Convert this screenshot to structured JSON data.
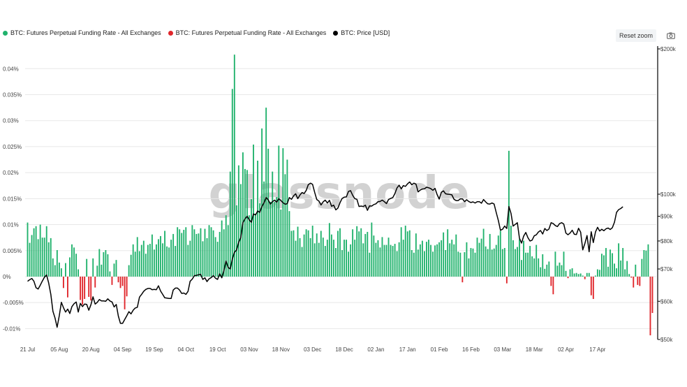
{
  "legend": {
    "pos_label": "BTC: Futures Perpetual Funding Rate - All Exchanges",
    "neg_label": "BTC: Futures Perpetual Funding Rate - All Exchanges",
    "price_label": "BTC: Price [USD]"
  },
  "controls": {
    "reset_label": "Reset zoom",
    "camera_icon": "camera-icon"
  },
  "watermark": "glassnode",
  "colors": {
    "positive": "#20b26c",
    "negative": "#e0262b",
    "price": "#000000",
    "axis": "#000000"
  },
  "chart_data": {
    "type": "bar",
    "left_axis": {
      "ticks": [
        "-0.01%",
        "-0.005%",
        "0%",
        "0.005%",
        "0.01%",
        "0.015%",
        "0.02%",
        "0.025%",
        "0.03%",
        "0.035%",
        "0.04%"
      ],
      "values": [
        -0.01,
        -0.005,
        0,
        0.005,
        0.01,
        0.015,
        0.02,
        0.025,
        0.03,
        0.035,
        0.04
      ],
      "ylim": [
        -0.0121,
        0.0434
      ]
    },
    "right_axis": {
      "scale": "log",
      "ticks": [
        "$50k",
        "$60k",
        "$70k",
        "$80k",
        "$90k",
        "$100k",
        "$200k"
      ],
      "values": [
        50000,
        60000,
        70000,
        80000,
        90000,
        100000,
        200000
      ]
    },
    "x_ticks": [
      "21 Jul",
      "05 Aug",
      "20 Aug",
      "04 Sep",
      "19 Sep",
      "04 Oct",
      "19 Oct",
      "03 Nov",
      "18 Nov",
      "03 Dec",
      "18 Dec",
      "02 Jan",
      "17 Jan",
      "01 Feb",
      "16 Feb",
      "03 Mar",
      "18 Mar",
      "02 Apr",
      "17 Apr"
    ],
    "x_range": [
      "2024-07-21",
      "2025-04-24"
    ],
    "funding_rate": [
      0.0104,
      0.0065,
      0.008,
      0.0093,
      0.0097,
      0.0072,
      0.01,
      0.0075,
      0.0075,
      0.0097,
      0.0066,
      0.0074,
      0.0035,
      0.0022,
      0.0051,
      0.0027,
      0.0016,
      -0.0022,
      0.0026,
      -0.004,
      0.0037,
      0.0062,
      0.0056,
      0.0044,
      0.0014,
      -0.0045,
      -0.0054,
      -0.0043,
      0.0034,
      -0.0039,
      -0.0046,
      0.0035,
      -0.0021,
      0.0021,
      0.0053,
      0.0023,
      0.0047,
      0.0051,
      0.0043,
      0.001,
      -0.0016,
      0.0025,
      0.0032,
      -0.0011,
      -0.0022,
      -0.0018,
      -0.0063,
      -0.0038,
      0.0022,
      0.0042,
      0.0062,
      0.0048,
      0.0076,
      0.0049,
      0.0061,
      0.0069,
      0.0044,
      0.0061,
      0.0063,
      0.0081,
      0.0052,
      0.0062,
      0.0072,
      0.0078,
      0.0064,
      0.0088,
      0.0058,
      0.0056,
      0.0071,
      0.0082,
      0.0059,
      0.0095,
      0.0091,
      0.0084,
      0.009,
      0.0095,
      0.0061,
      0.0069,
      0.0099,
      0.0091,
      0.0082,
      0.0083,
      0.0093,
      0.0068,
      0.0092,
      0.0074,
      0.0099,
      0.0095,
      0.0089,
      0.0076,
      0.0067,
      0.0086,
      0.0108,
      0.0091,
      0.0118,
      0.0099,
      0.0202,
      0.0361,
      0.0427,
      0.0137,
      0.0214,
      0.0178,
      0.0239,
      0.0207,
      0.0205,
      0.0118,
      0.0149,
      0.0254,
      0.0121,
      0.0223,
      0.0141,
      0.0285,
      0.0183,
      0.0325,
      0.0246,
      0.0144,
      0.0202,
      0.0144,
      0.0153,
      0.0252,
      0.0129,
      0.0247,
      0.0197,
      0.0225,
      0.0126,
      0.0088,
      0.0089,
      0.0069,
      0.0096,
      0.0074,
      0.0057,
      0.0081,
      0.0091,
      0.0089,
      0.0074,
      0.0098,
      0.0064,
      0.0083,
      0.0065,
      0.0088,
      0.0075,
      0.0059,
      0.0071,
      0.0103,
      0.0081,
      0.0071,
      0.0055,
      0.0088,
      0.0093,
      0.0051,
      0.0071,
      0.0071,
      0.0048,
      0.0062,
      0.0091,
      0.0071,
      0.0097,
      0.0087,
      0.0093,
      0.0064,
      0.0082,
      0.0086,
      0.0046,
      0.0104,
      0.0079,
      0.0065,
      0.007,
      0.0056,
      0.0076,
      0.0061,
      0.0061,
      0.0075,
      0.0061,
      0.0059,
      0.0063,
      0.0049,
      0.0066,
      0.0095,
      0.0071,
      0.0098,
      0.0087,
      0.0089,
      0.0051,
      0.0046,
      0.0083,
      0.0052,
      0.0062,
      0.0069,
      0.0049,
      0.0067,
      0.0071,
      0.0061,
      0.0048,
      0.006,
      0.0062,
      0.0066,
      0.007,
      0.0085,
      0.0051,
      0.0091,
      0.0064,
      0.0071,
      0.0062,
      0.0081,
      0.0048,
      0.0046,
      -0.0011,
      0.0047,
      0.0066,
      0.0035,
      0.0055,
      0.0054,
      0.0046,
      0.0075,
      0.0065,
      0.0073,
      0.0092,
      0.0058,
      0.0053,
      0.0082,
      0.0052,
      0.0054,
      0.0061,
      0.0079,
      0.0088,
      0.0053,
      0.0055,
      -0.0013,
      0.0242,
      0.0098,
      0.007,
      0.0053,
      0.0057,
      0.0072,
      0.0032,
      0.0069,
      0.0046,
      0.0046,
      0.0059,
      0.0039,
      0.0035,
      0.0061,
      0.0035,
      0.0018,
      0.0043,
      0.0015,
      0.0023,
      0.0029,
      -0.0018,
      -0.0034,
      0.0048,
      0.0021,
      0.0027,
      0.0022,
      0.0048,
      0.0011,
      -0.0003,
      0.0014,
      0.0016,
      0.0006,
      0.0007,
      0.0005,
      0.0006,
      0.0002,
      -0.0005,
      0.0007,
      0.0007,
      -0.0036,
      -0.0043,
      0.0002,
      0.0014,
      0.0013,
      0.0044,
      0.0041,
      0.0055,
      0.0019,
      0.0052,
      0.0045,
      0.0025,
      0.0016,
      0.0064,
      0.0031,
      0.0055,
      0.0014,
      0.003,
      0.0005,
      -0.0002,
      -0.0021,
      0.0023,
      -0.0016,
      -0.0018,
      0.0034,
      0.0051,
      0.005,
      0.0062,
      -0.0113,
      -0.007
    ],
    "price_usd": [
      66000,
      66500,
      66900,
      66000,
      64000,
      63600,
      64800,
      66100,
      67300,
      68000,
      65500,
      62000,
      57200,
      55400,
      53000,
      56000,
      59700,
      58200,
      57000,
      57800,
      56600,
      58500,
      59300,
      59800,
      57000,
      59400,
      58500,
      59200,
      59100,
      57500,
      59000,
      61300,
      59200,
      59700,
      60500,
      60100,
      60100,
      60000,
      60700,
      60100,
      59800,
      58400,
      59100,
      55900,
      54000,
      54000,
      55000,
      56000,
      57100,
      56500,
      57500,
      58100,
      58300,
      61200,
      62000,
      62900,
      63500,
      63800,
      63800,
      63400,
      63500,
      63400,
      64600,
      63000,
      62000,
      61000,
      60900,
      60800,
      60800,
      63300,
      63900,
      63900,
      63300,
      62300,
      62400,
      62000,
      62900,
      66000,
      66700,
      67800,
      67900,
      68100,
      68200,
      66600,
      67100,
      65900,
      66800,
      67200,
      67800,
      67000,
      66600,
      68400,
      67100,
      69400,
      72700,
      70500,
      70000,
      73400,
      75800,
      76600,
      79500,
      81300,
      87300,
      88900,
      90000,
      88500,
      87500,
      91000,
      90600,
      92300,
      91700,
      94300,
      96000,
      98400,
      97300,
      95400,
      96500,
      97200,
      96300,
      97900,
      97000,
      96000,
      95300,
      95600,
      98400,
      97600,
      99200,
      100200,
      97900,
      99600,
      100800,
      100300,
      101800,
      104700,
      105400,
      104800,
      100900,
      97500,
      96800,
      95000,
      96400,
      97200,
      95900,
      97100,
      94400,
      94900,
      92800,
      93600,
      96000,
      98000,
      98600,
      98700,
      101300,
      101700,
      99500,
      97900,
      97600,
      94300,
      94500,
      94300,
      94900,
      92600,
      94600,
      94500,
      95200,
      95500,
      96500,
      96600,
      97200,
      96500,
      95600,
      97500,
      98000,
      98400,
      100300,
      103000,
      104400,
      102600,
      104200,
      103800,
      105100,
      106000,
      104600,
      105400,
      104900,
      101100,
      102000,
      102500,
      102600,
      103400,
      103100,
      102700,
      101900,
      102800,
      99800,
      97700,
      100900,
      101600,
      100200,
      100000,
      99900,
      99700,
      97600,
      97000,
      97000,
      97800,
      97800,
      96500,
      97400,
      96600,
      96100,
      96400,
      95900,
      96500,
      96500,
      95800,
      97500,
      96400,
      95500,
      95400,
      95900,
      95400,
      91700,
      88200,
      84200,
      84600,
      85900,
      84900,
      94300,
      91300,
      85900,
      86600,
      87300,
      81100,
      79200,
      81900,
      83300,
      81300,
      80000,
      80300,
      82000,
      82400,
      83500,
      84100,
      82700,
      84900,
      84100,
      84700,
      87300,
      86900,
      86100,
      85700,
      86900,
      87300,
      86700,
      83100,
      82400,
      83100,
      84200,
      82600,
      82500,
      85000,
      83400,
      76700,
      79000,
      82100,
      76000,
      83600,
      79400,
      83500,
      85400,
      83900,
      84600,
      84000,
      84800,
      85100,
      84500,
      85200,
      87500,
      91700,
      92900,
      93400,
      94200
    ]
  }
}
